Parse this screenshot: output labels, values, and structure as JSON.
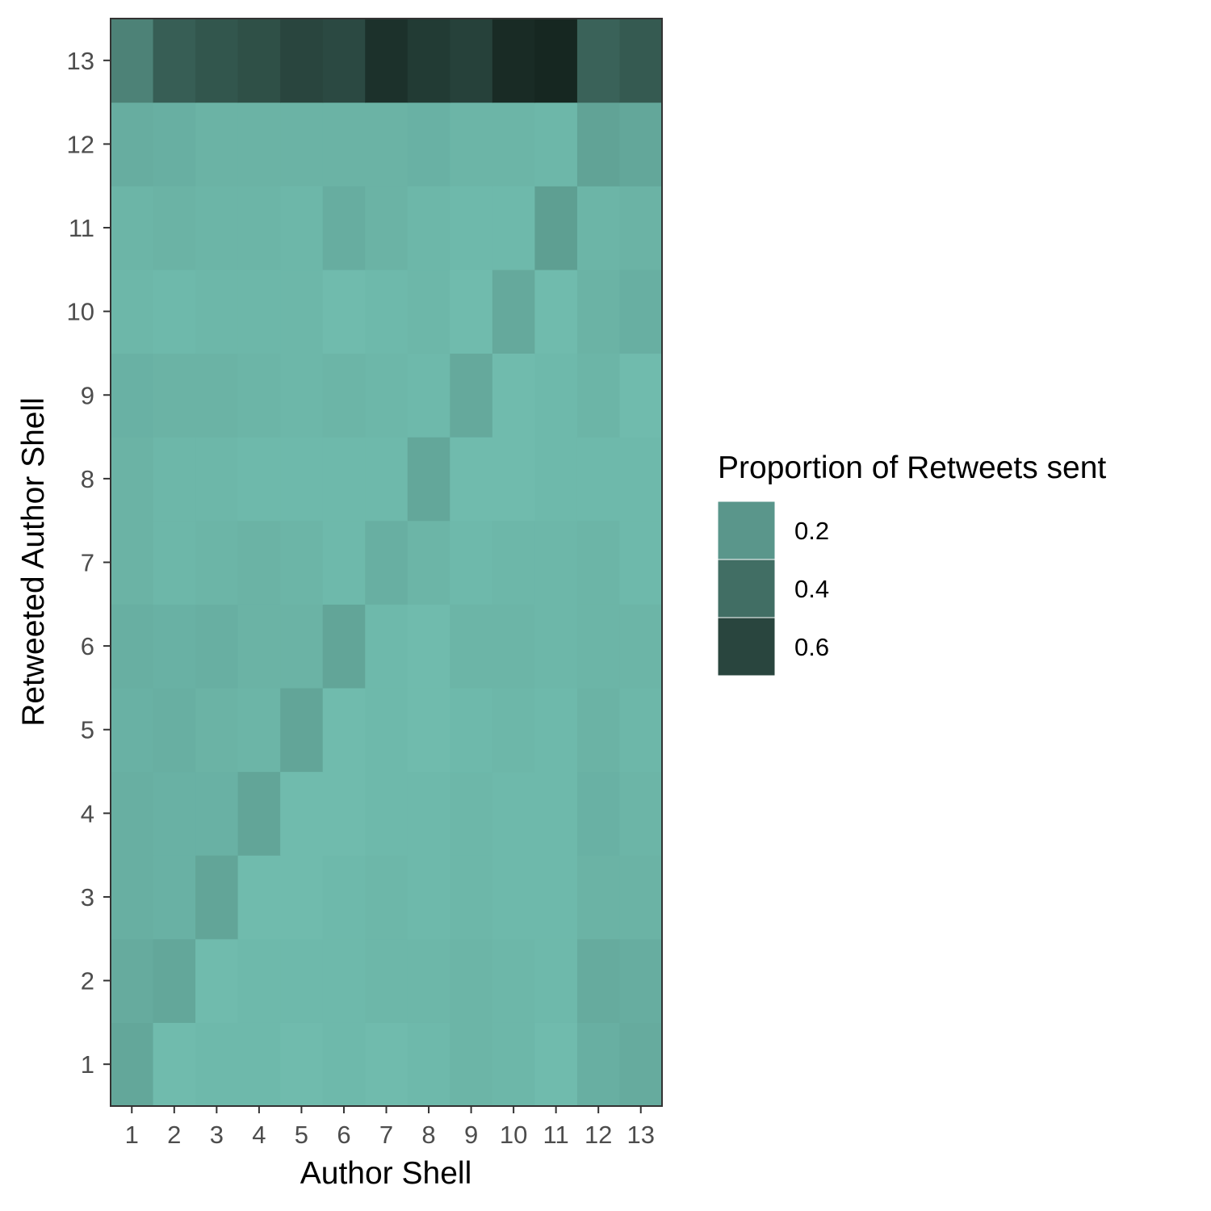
{
  "chart_data": {
    "type": "heatmap",
    "title": "",
    "xlabel": "Author Shell",
    "ylabel": "Retweeted Author Shell",
    "x_categories": [
      "1",
      "2",
      "3",
      "4",
      "5",
      "6",
      "7",
      "8",
      "9",
      "10",
      "11",
      "12",
      "13"
    ],
    "y_categories": [
      "1",
      "2",
      "3",
      "4",
      "5",
      "6",
      "7",
      "8",
      "9",
      "10",
      "11",
      "12",
      "13"
    ],
    "values": [
      [
        0.12,
        0.02,
        0.03,
        0.03,
        0.02,
        0.03,
        0.02,
        0.03,
        0.05,
        0.04,
        0.02,
        0.08,
        0.1
      ],
      [
        0.1,
        0.12,
        0.02,
        0.03,
        0.03,
        0.03,
        0.04,
        0.04,
        0.05,
        0.04,
        0.03,
        0.1,
        0.09
      ],
      [
        0.08,
        0.07,
        0.13,
        0.02,
        0.02,
        0.03,
        0.04,
        0.03,
        0.04,
        0.03,
        0.03,
        0.06,
        0.06
      ],
      [
        0.08,
        0.07,
        0.07,
        0.13,
        0.02,
        0.02,
        0.03,
        0.03,
        0.04,
        0.03,
        0.03,
        0.07,
        0.05
      ],
      [
        0.07,
        0.08,
        0.06,
        0.05,
        0.13,
        0.02,
        0.03,
        0.02,
        0.03,
        0.04,
        0.03,
        0.06,
        0.04
      ],
      [
        0.08,
        0.07,
        0.08,
        0.06,
        0.06,
        0.13,
        0.03,
        0.02,
        0.05,
        0.05,
        0.04,
        0.05,
        0.05
      ],
      [
        0.06,
        0.04,
        0.05,
        0.06,
        0.05,
        0.03,
        0.08,
        0.05,
        0.03,
        0.04,
        0.04,
        0.05,
        0.03
      ],
      [
        0.06,
        0.04,
        0.04,
        0.03,
        0.03,
        0.03,
        0.03,
        0.12,
        0.02,
        0.02,
        0.03,
        0.03,
        0.03
      ],
      [
        0.07,
        0.06,
        0.06,
        0.05,
        0.04,
        0.05,
        0.04,
        0.03,
        0.11,
        0.02,
        0.03,
        0.05,
        0.02
      ],
      [
        0.04,
        0.03,
        0.04,
        0.04,
        0.04,
        0.02,
        0.03,
        0.04,
        0.02,
        0.11,
        0.02,
        0.06,
        0.08
      ],
      [
        0.05,
        0.06,
        0.05,
        0.05,
        0.04,
        0.09,
        0.06,
        0.04,
        0.03,
        0.03,
        0.16,
        0.05,
        0.06
      ],
      [
        0.09,
        0.08,
        0.06,
        0.06,
        0.06,
        0.06,
        0.06,
        0.07,
        0.05,
        0.05,
        0.04,
        0.14,
        0.12
      ],
      [
        0.3,
        0.48,
        0.52,
        0.55,
        0.6,
        0.58,
        0.7,
        0.65,
        0.62,
        0.73,
        0.75,
        0.46,
        0.5
      ]
    ],
    "legend": {
      "title": "Proportion of Retweets sent",
      "labels": [
        "0.2",
        "0.4",
        "0.6"
      ],
      "breaks": [
        0.2,
        0.4,
        0.6
      ],
      "placement": "right"
    },
    "color_scale": {
      "low_value": 0.0,
      "high_value": 0.76,
      "low_color": "#72bfb1",
      "high_color": "#15251f"
    },
    "grid": false,
    "panel_border_color": "#333333"
  }
}
